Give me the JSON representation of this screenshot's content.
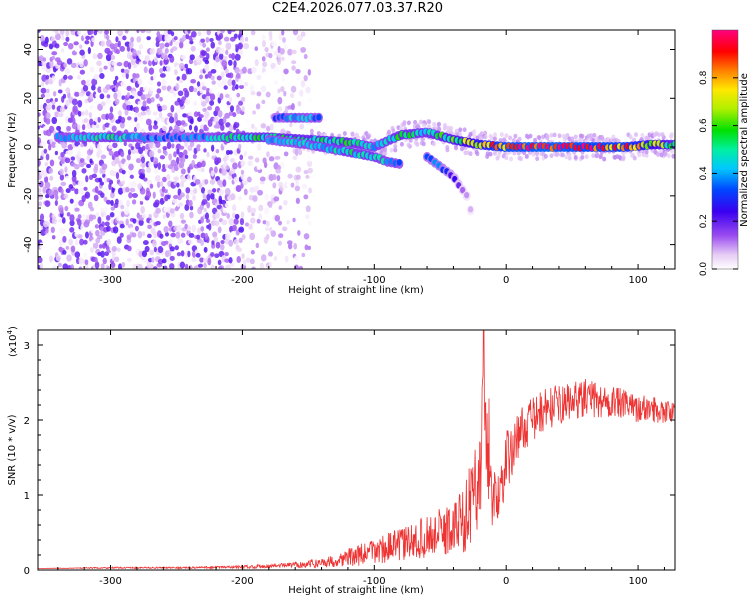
{
  "title": "C2E4.2026.077.03.37.R20",
  "colors": {
    "snr_line": "#ee3333",
    "spectrogram_low": "#e8d4f6",
    "spectrogram_mid": "#6a00d8",
    "ridge_mid": "#00c8ff",
    "ridge_peak": "#ff2000"
  },
  "chart_data": [
    {
      "type": "heatmap",
      "title": "C2E4.2026.077.03.37.R20",
      "xlabel": "Height of straight line (km)",
      "ylabel": "Frequency (Hz)",
      "xlim": [
        -355,
        128
      ],
      "ylim": [
        -50,
        48
      ],
      "x_ticks": [
        -300,
        -200,
        -100,
        0,
        100
      ],
      "y_ticks": [
        -40,
        -20,
        0,
        20,
        40
      ],
      "grid": false,
      "colorbar": {
        "label": "Normalized spectral amplitude",
        "range": [
          0,
          1
        ],
        "ticks": [
          "0.0",
          "0.2",
          "0.4",
          "0.6",
          "0.8"
        ],
        "colormap": "white-violet-blue-cyan-green-yellow-orange-red-magenta"
      },
      "ridge_main": {
        "x": [
          -340,
          -300,
          -260,
          -230,
          -210,
          -180,
          -150,
          -120,
          -100,
          -80,
          -60,
          -40,
          -20,
          0,
          30,
          60,
          90,
          110,
          128
        ],
        "freq": [
          4,
          4,
          4,
          4,
          4,
          4,
          3,
          2,
          0,
          5,
          6,
          3,
          1,
          0,
          0,
          0,
          0,
          1,
          1
        ],
        "amplitude": [
          0.4,
          0.5,
          0.35,
          0.4,
          0.5,
          0.55,
          0.55,
          0.55,
          0.45,
          0.55,
          0.5,
          0.6,
          0.75,
          0.95,
          1.0,
          0.95,
          0.9,
          0.7,
          0.55
        ]
      },
      "ridge_upper": {
        "x": [
          -175,
          -160,
          -140
        ],
        "freq": [
          12,
          12,
          12
        ],
        "amplitude": [
          0.35,
          0.45,
          0.4
        ]
      },
      "ridge_descending": {
        "x": [
          -180,
          -150,
          -120,
          -100,
          -90,
          -80
        ],
        "freq": [
          3,
          1,
          -2,
          -4,
          -6,
          -7
        ],
        "amplitude": [
          0.4,
          0.45,
          0.5,
          0.5,
          0.45,
          0.4
        ]
      },
      "ridge_second_descending": {
        "x": [
          -60,
          -50,
          -40,
          -30,
          -25
        ],
        "freq": [
          -4,
          -8,
          -12,
          -20,
          -30
        ],
        "amplitude": [
          0.35,
          0.35,
          0.25,
          0.1,
          0.05
        ]
      }
    },
    {
      "type": "line",
      "xlabel": "Height of straight line (km)",
      "ylabel": "SNR (10 * v/v)",
      "y_multiplier": "(x10",
      "y_multiplier_exp": "4",
      "y_multiplier_close": ")",
      "xlim": [
        -355,
        128
      ],
      "ylim": [
        0,
        3.2
      ],
      "x_ticks": [
        -300,
        -200,
        -100,
        0,
        100
      ],
      "y_ticks": [
        0,
        1,
        2,
        3
      ],
      "grid": false,
      "series": [
        {
          "x": [
            -355,
            -300,
            -250,
            -200,
            -170,
            -150,
            -130,
            -120,
            -110,
            -100,
            -90,
            -80,
            -70,
            -60,
            -50,
            -40,
            -30,
            -25,
            -20,
            -17,
            -15,
            -12,
            -10,
            -5,
            0,
            5,
            10,
            20,
            30,
            40,
            50,
            60,
            70,
            80,
            90,
            100,
            110,
            128
          ],
          "y": [
            0.02,
            0.03,
            0.03,
            0.04,
            0.06,
            0.08,
            0.12,
            0.17,
            0.2,
            0.25,
            0.3,
            0.34,
            0.38,
            0.45,
            0.5,
            0.55,
            0.75,
            1.0,
            1.3,
            2.2,
            1.7,
            1.2,
            0.9,
            1.05,
            1.45,
            1.6,
            1.85,
            2.0,
            2.15,
            2.2,
            2.25,
            2.3,
            2.25,
            2.25,
            2.2,
            2.15,
            2.15,
            2.1
          ],
          "noise": [
            0,
            0.01,
            0.01,
            0.02,
            0.03,
            0.05,
            0.08,
            0.12,
            0.15,
            0.18,
            0.2,
            0.22,
            0.25,
            0.28,
            0.32,
            0.38,
            0.5,
            0.6,
            0.7,
            0.9,
            0.7,
            0.5,
            0.4,
            0.35,
            0.4,
            0.35,
            0.3,
            0.3,
            0.28,
            0.26,
            0.25,
            0.25,
            0.25,
            0.22,
            0.2,
            0.18,
            0.18,
            0.15
          ]
        }
      ]
    }
  ]
}
